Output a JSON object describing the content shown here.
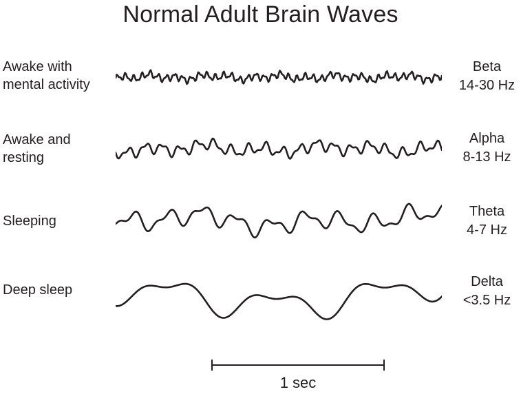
{
  "title": "Normal Adult Brain Waves",
  "colors": {
    "ink": "#231f20",
    "background": "#ffffff"
  },
  "rows": [
    {
      "state_lines": [
        "Awake with",
        "mental activity"
      ],
      "wave_name": "Beta",
      "frequency": "14-30 Hz",
      "wave": {
        "cycles": 40,
        "amplitude": 7.5,
        "seed": 7
      }
    },
    {
      "state_lines": [
        "Awake and",
        "resting"
      ],
      "wave_name": "Alpha",
      "frequency": "8-13 Hz",
      "wave": {
        "cycles": 19,
        "amplitude": 12,
        "seed": 11
      }
    },
    {
      "state_lines": [
        "Sleeping"
      ],
      "wave_name": "Theta",
      "frequency": "4-7 Hz",
      "wave": {
        "cycles": 9.5,
        "amplitude": 19,
        "seed": 3
      }
    },
    {
      "state_lines": [
        "Deep sleep"
      ],
      "wave_name": "Delta",
      "frequency": "<3.5 Hz",
      "wave": {
        "cycles": 3.2,
        "amplitude": 31,
        "seed": 5
      }
    }
  ],
  "scale_bar": {
    "label": "1 sec"
  }
}
